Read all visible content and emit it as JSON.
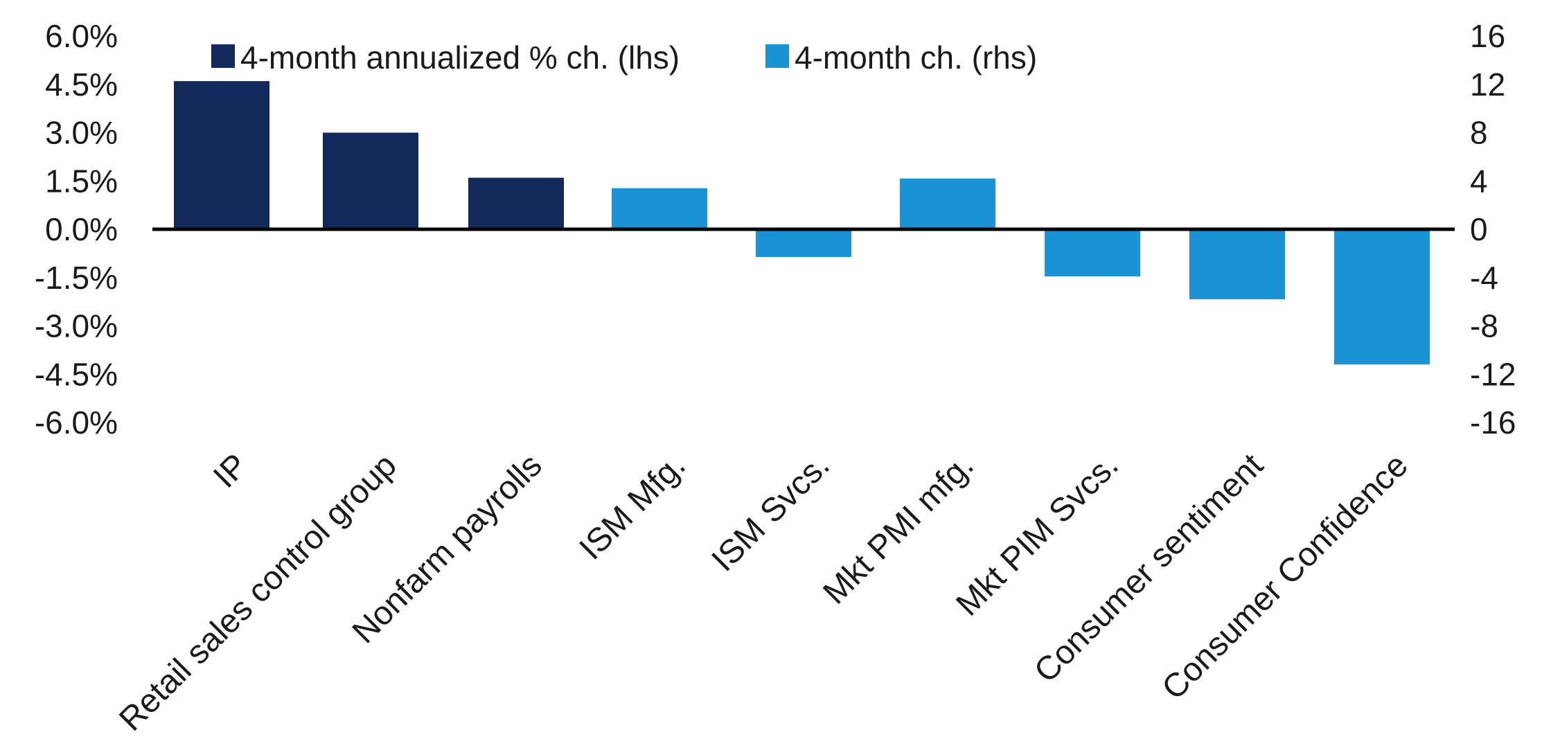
{
  "chart_data": {
    "type": "bar",
    "categories": [
      "IP",
      "Retail sales control group",
      "Nonfarm payrolls",
      "ISM Mfg.",
      "ISM Svcs.",
      "Mkt PMI mfg.",
      "Mkt PIM Svcs.",
      "Consumer sentiment",
      "Consumer Confidence"
    ],
    "series": [
      {
        "name": "4-month annualized % ch. (lhs)",
        "axis": "left",
        "color": "#13295c",
        "values": [
          4.6,
          3.0,
          1.6,
          null,
          null,
          null,
          null,
          null,
          null
        ]
      },
      {
        "name": "4-month ch. (rhs)",
        "axis": "right",
        "color": "#1c92d6",
        "values": [
          null,
          null,
          null,
          3.4,
          -2.3,
          4.2,
          -3.9,
          -5.8,
          -11.2
        ]
      }
    ],
    "y_left": {
      "lim": [
        -6.0,
        6.0
      ],
      "ticks": [
        6.0,
        4.5,
        3.0,
        1.5,
        0.0,
        -1.5,
        -3.0,
        -4.5,
        -6.0
      ],
      "tick_labels": [
        "6.0%",
        "4.5%",
        "3.0%",
        "1.5%",
        "0.0%",
        "-1.5%",
        "-3.0%",
        "-4.5%",
        "-6.0%"
      ]
    },
    "y_right": {
      "lim": [
        -16,
        16
      ],
      "ticks": [
        16,
        12,
        8,
        4,
        0,
        -4,
        -8,
        -12,
        -16
      ],
      "tick_labels": [
        "16",
        "12",
        "8",
        "4",
        "0",
        "-4",
        "-8",
        "-12",
        "-16"
      ]
    },
    "legend": {
      "placement": "top",
      "entries": [
        {
          "label": "4-month annualized % ch. (lhs)",
          "color": "#13295c"
        },
        {
          "label": "4-month ch. (rhs)",
          "color": "#1c92d6"
        }
      ]
    },
    "grid": false,
    "title": "",
    "xlabel": "",
    "ylabel": ""
  }
}
